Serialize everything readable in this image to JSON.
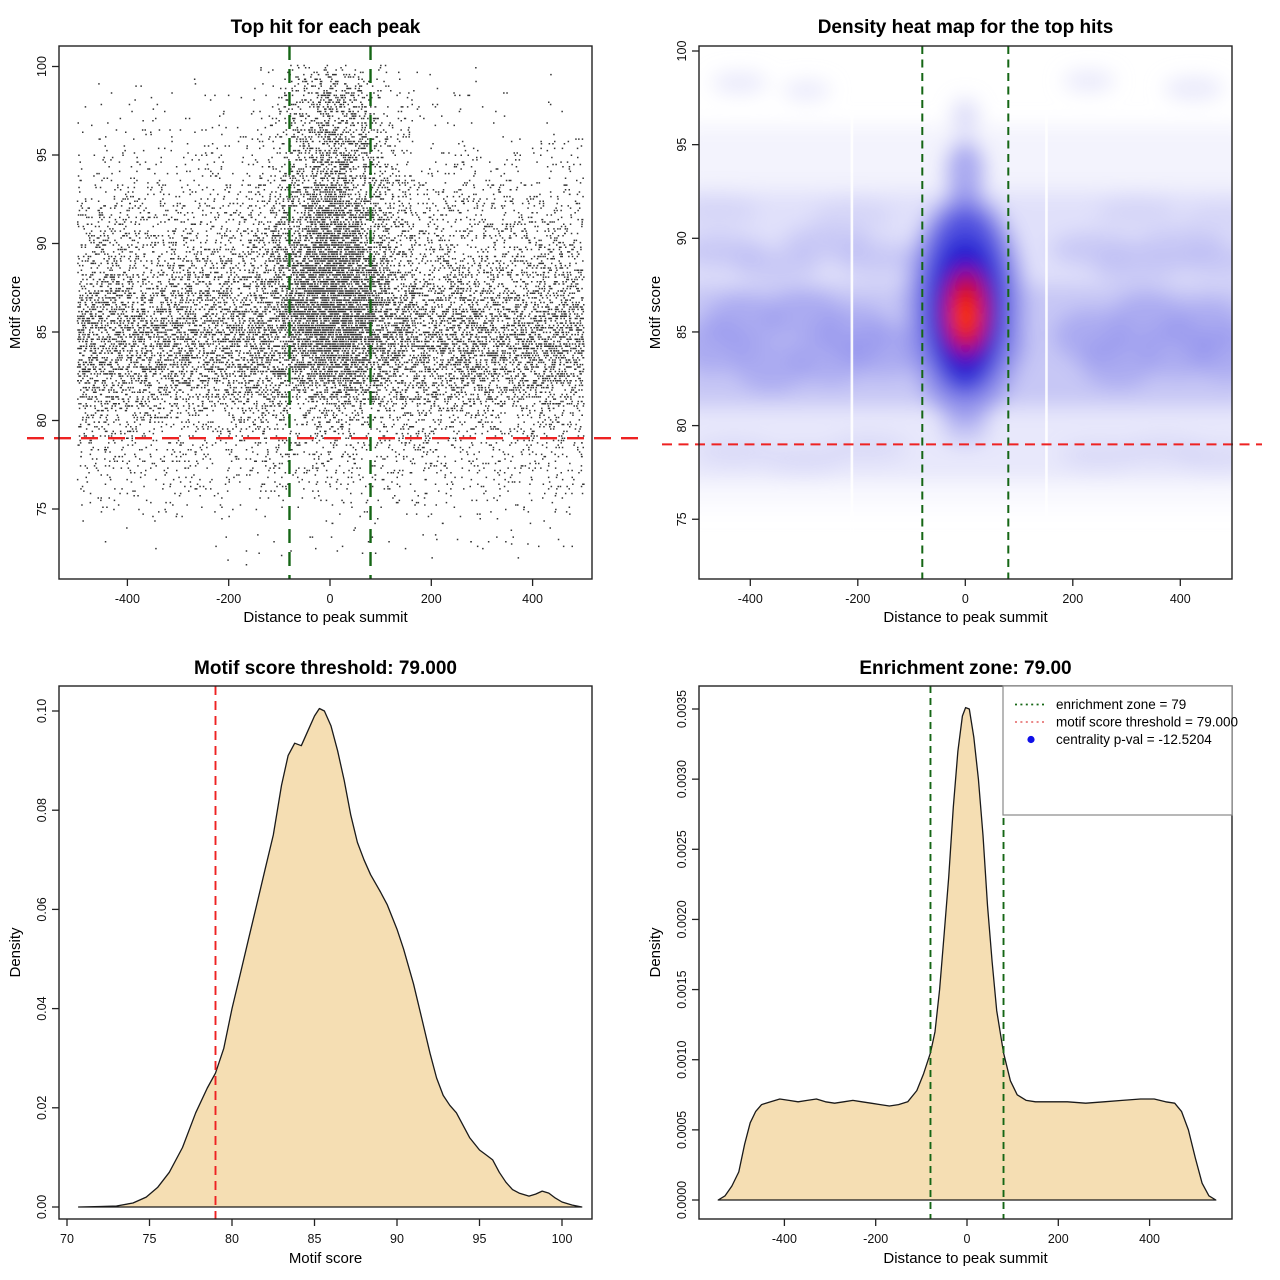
{
  "figure": {
    "background": "#ffffff",
    "rows": 2,
    "cols": 2
  },
  "colors": {
    "threshold_red": "#ee2222",
    "zone_green": "#156615",
    "density_fill": "#f5deb3",
    "density_stroke": "#1a1a1a",
    "point_black": "#000000",
    "legend_blue": "#0f0fe8",
    "legend_red_dotted": "#e87777",
    "heat_low": "#b9b9f2",
    "heat_mid": "#2020cc",
    "heat_hot": "#cc0000",
    "heat_core": "#ff3d00"
  },
  "panels": {
    "scatter": {
      "title": "Top hit for each peak",
      "xlabel": "Distance to peak summit",
      "ylabel": "Motif score",
      "x_tick_labels": [
        "-400",
        "-200",
        "0",
        "200",
        "400"
      ],
      "y_tick_labels": [
        "75",
        "80",
        "85",
        "90",
        "95",
        "100"
      ]
    },
    "heatmap": {
      "title": "Density heat map for the top hits",
      "xlabel": "Distance to peak summit",
      "ylabel": "Motif score",
      "x_tick_labels": [
        "-400",
        "-200",
        "0",
        "200",
        "400"
      ],
      "y_tick_labels": [
        "75",
        "80",
        "85",
        "90",
        "95",
        "100"
      ]
    },
    "score_density": {
      "title": "Motif score threshold: 79.000",
      "xlabel": "Motif score",
      "ylabel": "Density",
      "x_tick_labels": [
        "70",
        "75",
        "80",
        "85",
        "90",
        "95",
        "100"
      ],
      "y_tick_labels": [
        "0.00",
        "0.02",
        "0.04",
        "0.06",
        "0.08",
        "0.10"
      ]
    },
    "distance_density": {
      "title": "Enrichment zone: 79.00",
      "xlabel": "Distance to peak summit",
      "ylabel": "Density",
      "x_tick_labels": [
        "-400",
        "-200",
        "0",
        "200",
        "400"
      ],
      "y_tick_labels": [
        "0.0000",
        "0.0005",
        "0.0010",
        "0.0015",
        "0.0020",
        "0.0025",
        "0.0030",
        "0.0035"
      ],
      "legend": {
        "items": [
          {
            "symbol": "green-dotted-line",
            "label": "enrichment zone = 79"
          },
          {
            "symbol": "red-dotted-line",
            "label": "motif score threshold = 79.000"
          },
          {
            "symbol": "blue-point",
            "label": "centrality p-val = -12.5204"
          }
        ]
      }
    }
  },
  "chart_data": [
    {
      "id": "top_hit_scatter",
      "type": "scatter",
      "title": "Top hit for each peak",
      "xlabel": "Distance to peak summit",
      "ylabel": "Motif score",
      "xlim": [
        -535,
        520
      ],
      "ylim": [
        71,
        101.2
      ],
      "x_ticks": [
        -400,
        -200,
        0,
        200,
        400
      ],
      "y_ticks": [
        75,
        80,
        85,
        90,
        95,
        100
      ],
      "motif_score_threshold": 79,
      "enrichment_zone": [
        -80,
        80
      ],
      "n_points_approx": 18000,
      "point_cloud": {
        "background": {
          "x": "uniform(-500,500)",
          "y_mixture": [
            {
              "mean": 84.3,
              "sd": 2.2,
              "weight": 0.5
            },
            {
              "mean": 88.0,
              "sd": 2.6,
              "weight": 0.22
            },
            {
              "mean": 91.5,
              "sd": 2.8,
              "weight": 0.1
            },
            {
              "mean": 81.3,
              "sd": 1.8,
              "weight": 0.08
            },
            {
              "mean": 77.8,
              "sd": 1.6,
              "weight": 0.06
            },
            {
              "uniform": [
                72.2,
                100
              ],
              "weight": 0.04
            }
          ]
        },
        "central_column": {
          "x": "normal(6,55) clipped to |x|<165 with wide halo normal(0,130)",
          "y_mixture": [
            {
              "mean": 86.5,
              "sd": 2.6,
              "weight": 0.45
            },
            {
              "mean": 89.5,
              "sd": 3.0,
              "weight": 0.25
            },
            {
              "mean": 93.2,
              "sd": 2.8,
              "weight": 0.18
            },
            {
              "mean": 97.3,
              "sd": 1.9,
              "weight": 0.12
            }
          ]
        },
        "score_quantization_step": 0.13
      }
    },
    {
      "id": "density_heatmap",
      "type": "heatmap",
      "title": "Density heat map for the top hits",
      "xlabel": "Distance to peak summit",
      "ylabel": "Motif score",
      "xlim": [
        -495,
        496
      ],
      "ylim": [
        71.8,
        100.3
      ],
      "x_ticks": [
        -400,
        -200,
        0,
        200,
        400
      ],
      "y_ticks": [
        75,
        80,
        85,
        90,
        95,
        100
      ],
      "motif_score_threshold": 79,
      "enrichment_zone": [
        -80,
        80
      ],
      "hotspot": {
        "x": 0,
        "motif_score": 85.9
      },
      "horizontal_band_score_range": [
        80,
        92
      ],
      "white_gap_x": [
        -211,
        151
      ],
      "colorscale": [
        "#ffffff",
        "#b9b9f2",
        "#2020cc",
        "#cc0000",
        "#ff3d00"
      ]
    },
    {
      "id": "motif_score_density",
      "type": "area",
      "title": "Motif score threshold: 79.000",
      "xlabel": "Motif score",
      "ylabel": "Density",
      "xlim": [
        69.5,
        102.5
      ],
      "ylim": [
        0,
        0.105
      ],
      "x_ticks": [
        70,
        75,
        80,
        85,
        90,
        95,
        100
      ],
      "y_ticks": [
        0,
        0.02,
        0.04,
        0.06,
        0.08,
        0.1
      ],
      "threshold_line_x": 79,
      "x": [
        70.7,
        72.0,
        73.0,
        74.0,
        74.8,
        75.5,
        76.2,
        77.0,
        77.8,
        78.5,
        79.0,
        79.5,
        80.0,
        80.5,
        81.0,
        81.5,
        82.0,
        82.5,
        83.0,
        83.4,
        83.8,
        84.2,
        84.6,
        85.0,
        85.3,
        85.6,
        86.0,
        86.4,
        86.8,
        87.2,
        87.6,
        88.0,
        88.4,
        89.0,
        89.4,
        90.0,
        90.4,
        91.0,
        91.5,
        92.0,
        92.4,
        92.8,
        93.2,
        93.6,
        94.0,
        94.4,
        95.0,
        95.4,
        95.8,
        96.2,
        96.6,
        97.0,
        97.4,
        98.0,
        98.4,
        98.8,
        99.2,
        99.6,
        100.0,
        100.6,
        101.2
      ],
      "y": [
        0,
        0.0001,
        0.0002,
        0.0008,
        0.002,
        0.004,
        0.007,
        0.012,
        0.019,
        0.024,
        0.027,
        0.032,
        0.04,
        0.047,
        0.054,
        0.061,
        0.068,
        0.075,
        0.085,
        0.091,
        0.0935,
        0.093,
        0.096,
        0.099,
        0.1005,
        0.1,
        0.097,
        0.092,
        0.086,
        0.079,
        0.0735,
        0.07,
        0.067,
        0.0635,
        0.061,
        0.056,
        0.052,
        0.045,
        0.038,
        0.031,
        0.026,
        0.0225,
        0.0205,
        0.019,
        0.0165,
        0.014,
        0.0115,
        0.0105,
        0.0095,
        0.007,
        0.005,
        0.0035,
        0.0028,
        0.0022,
        0.0026,
        0.0032,
        0.0028,
        0.0018,
        0.001,
        0.0004,
        0
      ]
    },
    {
      "id": "distance_density",
      "type": "area",
      "title": "Enrichment zone: 79.00",
      "xlabel": "Distance to peak summit",
      "ylabel": "Density",
      "xlim": [
        -590,
        590
      ],
      "ylim": [
        0,
        0.0036
      ],
      "x_ticks": [
        -400,
        -200,
        0,
        200,
        400
      ],
      "y_ticks": [
        0,
        0.0005,
        0.001,
        0.0015,
        0.002,
        0.0025,
        0.003,
        0.0035
      ],
      "zone_lines_x": [
        -80,
        80
      ],
      "legend_entries": [
        "enrichment zone = 79",
        "motif score threshold = 79.000",
        "centrality p-val = -12.5204"
      ],
      "x": [
        -545,
        -530,
        -515,
        -500,
        -487,
        -475,
        -463,
        -450,
        -430,
        -410,
        -390,
        -370,
        -350,
        -330,
        -310,
        -290,
        -270,
        -250,
        -230,
        -210,
        -190,
        -170,
        -150,
        -130,
        -110,
        -95,
        -80,
        -70,
        -60,
        -50,
        -40,
        -30,
        -20,
        -10,
        -3,
        5,
        15,
        25,
        35,
        45,
        55,
        65,
        80,
        95,
        110,
        130,
        150,
        180,
        220,
        260,
        300,
        340,
        380,
        410,
        435,
        455,
        470,
        485,
        500,
        515,
        530,
        545
      ],
      "y": [
        0,
        3e-05,
        0.0001,
        0.0002,
        0.0004,
        0.00055,
        0.00063,
        0.00068,
        0.0007,
        0.00072,
        0.00071,
        0.0007,
        0.00071,
        0.00072,
        0.0007,
        0.00069,
        0.0007,
        0.00071,
        0.0007,
        0.00069,
        0.00068,
        0.00067,
        0.00068,
        0.0007,
        0.00078,
        0.0009,
        0.00105,
        0.0012,
        0.0015,
        0.0019,
        0.0023,
        0.0028,
        0.0032,
        0.00345,
        0.00351,
        0.0035,
        0.0033,
        0.003,
        0.0026,
        0.0021,
        0.0017,
        0.00135,
        0.00105,
        0.00085,
        0.00075,
        0.00071,
        0.0007,
        0.0007,
        0.0007,
        0.00069,
        0.0007,
        0.00071,
        0.00072,
        0.00072,
        0.0007,
        0.00069,
        0.00063,
        0.0005,
        0.0003,
        0.00012,
        3e-05,
        0
      ]
    }
  ]
}
